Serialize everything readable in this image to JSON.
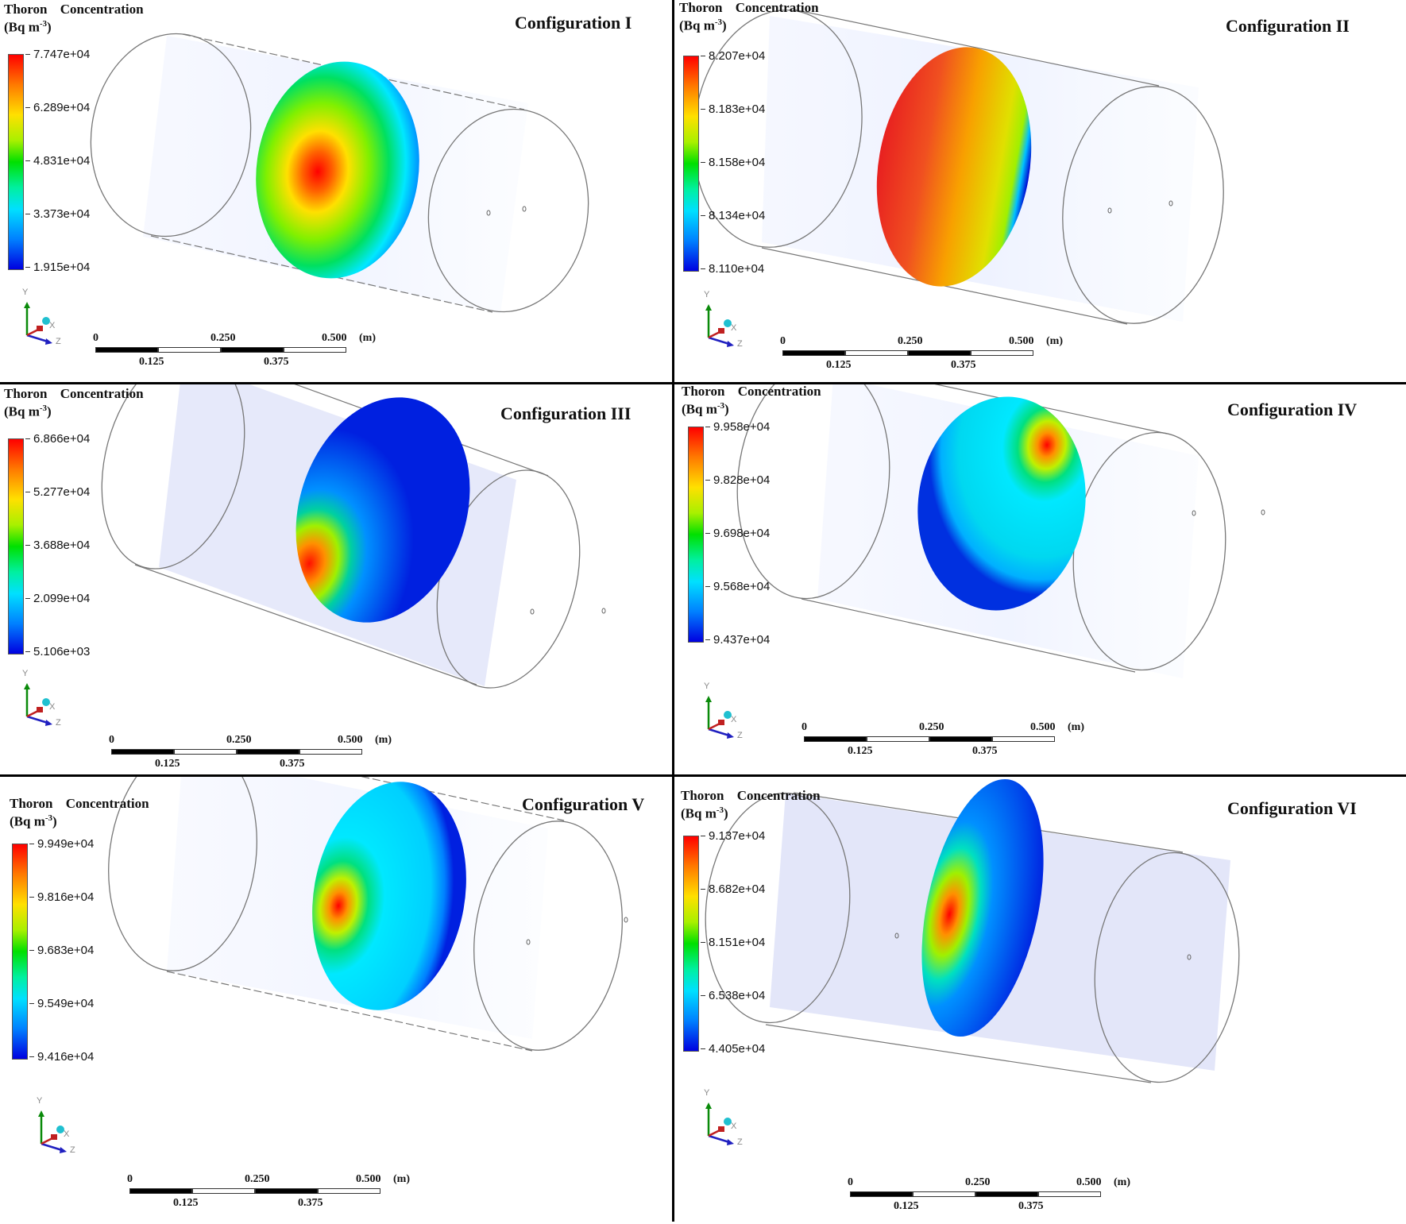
{
  "legend": {
    "title_line1": "Thoron Concentration",
    "title_line2": "(Bq m",
    "title_exp": "-3",
    "title_close": ")"
  },
  "axes_labels": {
    "y": "Y",
    "x": "X",
    "z": "Z"
  },
  "scale_bar": {
    "top_labels": [
      "0",
      "0.250",
      "0.500"
    ],
    "unit": "(m)",
    "bottom_labels": [
      "0.125",
      "0.375"
    ]
  },
  "panels": [
    {
      "config": "Configuration I",
      "ticks": [
        "7.747e+04",
        "6.289e+04",
        "4.831e+04",
        "3.373e+04",
        "1.915e+04"
      ]
    },
    {
      "config": "Configuration II",
      "ticks": [
        "8.207e+04",
        "8.183e+04",
        "8.158e+04",
        "8.134e+04",
        "8.110e+04"
      ]
    },
    {
      "config": "Configuration III",
      "ticks": [
        "6.866e+04",
        "5.277e+04",
        "3.688e+04",
        "2.099e+04",
        "5.106e+03"
      ]
    },
    {
      "config": "Configuration IV",
      "ticks": [
        "9.958e+04",
        "9.828e+04",
        "9.698e+04",
        "9.568e+04",
        "9.437e+04"
      ]
    },
    {
      "config": "Configuration V",
      "ticks": [
        "9.949e+04",
        "9.816e+04",
        "9.683e+04",
        "9.549e+04",
        "9.416e+04"
      ]
    },
    {
      "config": "Configuration VI",
      "ticks": [
        "9.137e+04",
        "8.682e+04",
        "8.151e+04",
        "6.538e+04",
        "4.405e+04"
      ]
    }
  ],
  "colors": {
    "red": "#ff0000",
    "orange": "#ff8000",
    "yellow": "#ffe000",
    "green": "#00e000",
    "cyan": "#00e8ff",
    "blue": "#0000e0"
  }
}
